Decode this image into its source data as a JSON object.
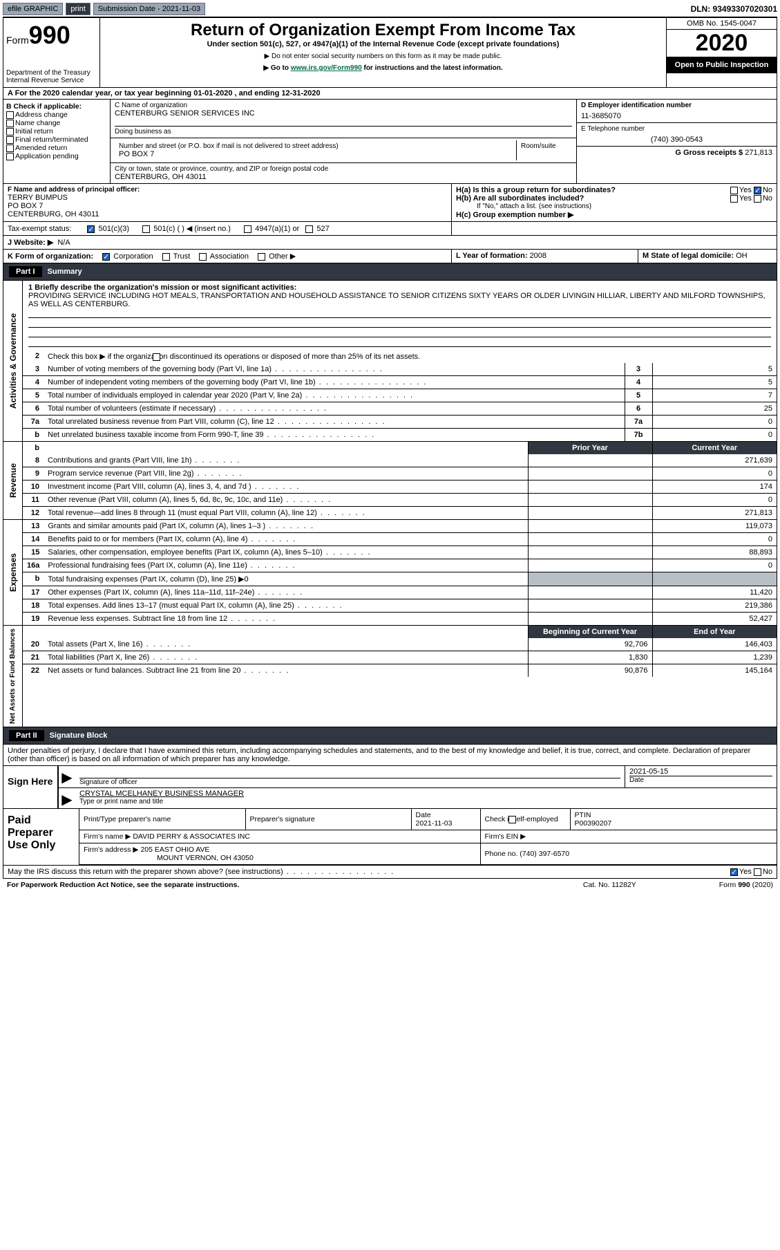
{
  "topbar": {
    "efile": "efile GRAPHIC",
    "print": "print",
    "sub_label": "Submission Date - 2021-11-03",
    "dln": "DLN: 93493307020301"
  },
  "header": {
    "form_word": "Form",
    "form_num": "990",
    "dept1": "Department of the Treasury",
    "dept2": "Internal Revenue Service",
    "title": "Return of Organization Exempt From Income Tax",
    "sub1": "Under section 501(c), 527, or 4947(a)(1) of the Internal Revenue Code (except private foundations)",
    "sub2": "▶ Do not enter social security numbers on this form as it may be made public.",
    "sub3a": "▶ Go to ",
    "sub3_link": "www.irs.gov/Form990",
    "sub3b": " for instructions and the latest information.",
    "omb": "OMB No. 1545-0047",
    "year": "2020",
    "open": "Open to Public Inspection"
  },
  "rowA": "For the 2020 calendar year, or tax year beginning 01-01-2020    , and ending 12-31-2020",
  "boxB": {
    "title": "B Check if applicable:",
    "items": [
      "Address change",
      "Name change",
      "Initial return",
      "Final return/terminated",
      "Amended return",
      "Application pending"
    ]
  },
  "boxC": {
    "name_lbl": "C Name of organization",
    "name": "CENTERBURG SENIOR SERVICES INC",
    "dba": "Doing business as",
    "addr_lbl": "Number and street (or P.O. box if mail is not delivered to street address)",
    "room_lbl": "Room/suite",
    "addr": "PO BOX 7",
    "city_lbl": "City or town, state or province, country, and ZIP or foreign postal code",
    "city": "CENTERBURG, OH  43011"
  },
  "boxD": {
    "lbl": "D Employer identification number",
    "val": "11-3685070"
  },
  "boxE": {
    "lbl": "E Telephone number",
    "val": "(740) 390-0543"
  },
  "boxG": {
    "lbl": "G Gross receipts $ ",
    "val": "271,813"
  },
  "boxF": {
    "lbl": "F  Name and address of principal officer:",
    "name": "TERRY BUMPUS",
    "addr": "PO BOX 7",
    "city": "CENTERBURG, OH  43011"
  },
  "boxH": {
    "a": "H(a)  Is this a group return for subordinates?",
    "b": "H(b)  Are all subordinates included?",
    "note": "If \"No,\" attach a list. (see instructions)",
    "c": "H(c)  Group exemption number ▶"
  },
  "boxI": {
    "lbl": "Tax-exempt status:",
    "o1": "501(c)(3)",
    "o2": "501(c) (  ) ◀ (insert no.)",
    "o3": "4947(a)(1) or",
    "o4": "527"
  },
  "boxJ": {
    "lbl": "J   Website: ▶",
    "val": "N/A"
  },
  "boxK": {
    "lbl": "K Form of organization:",
    "o1": "Corporation",
    "o2": "Trust",
    "o3": "Association",
    "o4": "Other ▶"
  },
  "boxL": {
    "lbl": "L Year of formation: ",
    "val": "2008"
  },
  "boxM": {
    "lbl": "M State of legal domicile: ",
    "val": "OH"
  },
  "part1": {
    "hdr": "Part I",
    "title": "Summary"
  },
  "summary": {
    "mission_lbl": "1  Briefly describe the organization's mission or most significant activities:",
    "mission": "PROVIDING SERVICE INCLUDING HOT MEALS, TRANSPORTATION AND HOUSEHOLD ASSISTANCE TO SENIOR CITIZENS SIXTY YEARS OR OLDER LIVINGIN HILLIAR, LIBERTY AND MILFORD TOWNSHIPS, AS WELL AS CENTERBURG.",
    "line2": "Check this box ▶        if the organization discontinued its operations or disposed of more than 25% of its net assets.",
    "rows": [
      {
        "n": "3",
        "t": "Number of voting members of the governing body (Part VI, line 1a)",
        "b": "3",
        "v": "5"
      },
      {
        "n": "4",
        "t": "Number of independent voting members of the governing body (Part VI, line 1b)",
        "b": "4",
        "v": "5"
      },
      {
        "n": "5",
        "t": "Total number of individuals employed in calendar year 2020 (Part V, line 2a)",
        "b": "5",
        "v": "7"
      },
      {
        "n": "6",
        "t": "Total number of volunteers (estimate if necessary)",
        "b": "6",
        "v": "25"
      },
      {
        "n": "7a",
        "t": "Total unrelated business revenue from Part VIII, column (C), line 12",
        "b": "7a",
        "v": "0"
      },
      {
        "n": "b",
        "t": "Net unrelated business taxable income from Form 990-T, line 39",
        "b": "7b",
        "v": "0"
      }
    ]
  },
  "revexp_hdr": {
    "prior": "Prior Year",
    "curr": "Current Year"
  },
  "revenue": [
    {
      "n": "8",
      "t": "Contributions and grants (Part VIII, line 1h)",
      "p": "",
      "c": "271,639"
    },
    {
      "n": "9",
      "t": "Program service revenue (Part VIII, line 2g)",
      "p": "",
      "c": "0"
    },
    {
      "n": "10",
      "t": "Investment income (Part VIII, column (A), lines 3, 4, and 7d )",
      "p": "",
      "c": "174"
    },
    {
      "n": "11",
      "t": "Other revenue (Part VIII, column (A), lines 5, 6d, 8c, 9c, 10c, and 11e)",
      "p": "",
      "c": "0"
    },
    {
      "n": "12",
      "t": "Total revenue—add lines 8 through 11 (must equal Part VIII, column (A), line 12)",
      "p": "",
      "c": "271,813"
    }
  ],
  "expenses": [
    {
      "n": "13",
      "t": "Grants and similar amounts paid (Part IX, column (A), lines 1–3 )",
      "p": "",
      "c": "119,073"
    },
    {
      "n": "14",
      "t": "Benefits paid to or for members (Part IX, column (A), line 4)",
      "p": "",
      "c": "0"
    },
    {
      "n": "15",
      "t": "Salaries, other compensation, employee benefits (Part IX, column (A), lines 5–10)",
      "p": "",
      "c": "88,893"
    },
    {
      "n": "16a",
      "t": "Professional fundraising fees (Part IX, column (A), line 11e)",
      "p": "",
      "c": "0"
    },
    {
      "n": "b",
      "t": "Total fundraising expenses (Part IX, column (D), line 25) ▶0",
      "grey": true
    },
    {
      "n": "17",
      "t": "Other expenses (Part IX, column (A), lines 11a–11d, 11f–24e)",
      "p": "",
      "c": "11,420"
    },
    {
      "n": "18",
      "t": "Total expenses. Add lines 13–17 (must equal Part IX, column (A), line 25)",
      "p": "",
      "c": "219,386"
    },
    {
      "n": "19",
      "t": "Revenue less expenses. Subtract line 18 from line 12",
      "p": "",
      "c": "52,427"
    }
  ],
  "net_hdr": {
    "begin": "Beginning of Current Year",
    "end": "End of Year"
  },
  "netassets": [
    {
      "n": "20",
      "t": "Total assets (Part X, line 16)",
      "p": "92,706",
      "c": "146,403"
    },
    {
      "n": "21",
      "t": "Total liabilities (Part X, line 26)",
      "p": "1,830",
      "c": "1,239"
    },
    {
      "n": "22",
      "t": "Net assets or fund balances. Subtract line 21 from line 20",
      "p": "90,876",
      "c": "145,164"
    }
  ],
  "section_labels": {
    "gov": "Activities & Governance",
    "rev": "Revenue",
    "exp": "Expenses",
    "net": "Net Assets or Fund Balances"
  },
  "part2": {
    "hdr": "Part II",
    "title": "Signature Block"
  },
  "perjury": "Under penalties of perjury, I declare that I have examined this return, including accompanying schedules and statements, and to the best of my knowledge and belief, it is true, correct, and complete. Declaration of preparer (other than officer) is based on all information of which preparer has any knowledge.",
  "sign": {
    "here": "Sign Here",
    "sig_officer": "Signature of officer",
    "date_lbl": "Date",
    "date": "2021-05-15",
    "name": "CRYSTAL MCELHANEY  BUSINESS MANAGER",
    "type_lbl": "Type or print name and title"
  },
  "prep": {
    "title": "Paid Preparer Use Only",
    "h1": "Print/Type preparer's name",
    "h2": "Preparer's signature",
    "h3_lbl": "Date",
    "h3": "2021-11-03",
    "h4": "Check        if self-employed",
    "h5_lbl": "PTIN",
    "h5": "P00390207",
    "firm_lbl": "Firm's name    ▶",
    "firm": "DAVID PERRY & ASSOCIATES INC",
    "ein_lbl": "Firm's EIN ▶",
    "addr_lbl": "Firm's address ▶",
    "addr1": "205 EAST OHIO AVE",
    "addr2": "MOUNT VERNON, OH  43050",
    "phone_lbl": "Phone no. ",
    "phone": "(740) 397-6570"
  },
  "discuss": "May the IRS discuss this return with the preparer shown above? (see instructions)",
  "footer": {
    "left": "For Paperwork Reduction Act Notice, see the separate instructions.",
    "mid": "Cat. No. 11282Y",
    "right": "Form 990 (2020)"
  },
  "yes": "Yes",
  "no": "No"
}
